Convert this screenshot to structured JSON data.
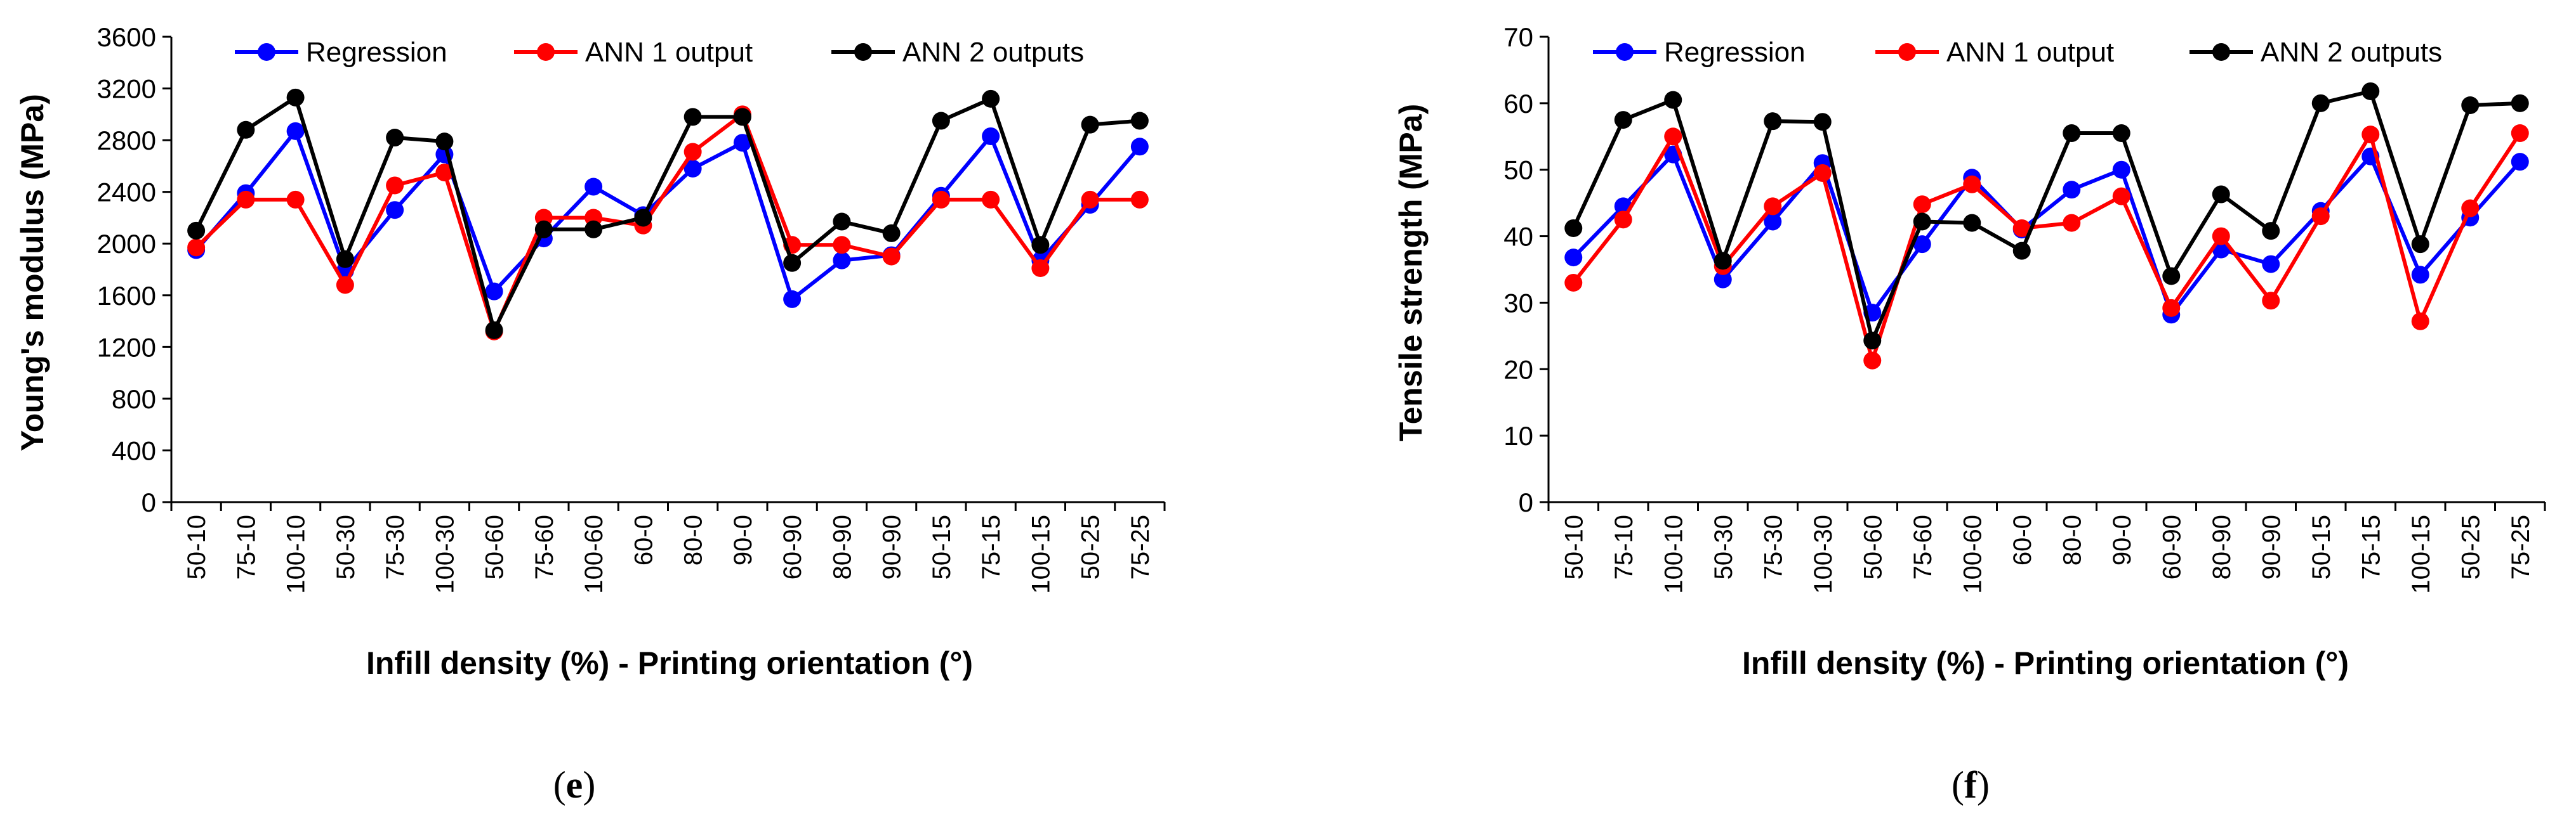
{
  "chart_data": [
    {
      "type": "line",
      "panel_label_prefix": "(",
      "panel_label_letter": "e",
      "panel_label_suffix": ")",
      "ylabel": "Young's modulus (MPa)",
      "xlabel": "Infill density (%) - Printing orientation (°)",
      "ylim": [
        0,
        3600
      ],
      "yticks": [
        0,
        400,
        800,
        1200,
        1600,
        2000,
        2400,
        2800,
        3200,
        3600
      ],
      "legend_position": "top",
      "categories": [
        "50-10",
        "75-10",
        "100-10",
        "50-30",
        "75-30",
        "100-30",
        "50-60",
        "75-60",
        "100-60",
        "60-0",
        "80-0",
        "90-0",
        "60-90",
        "80-90",
        "90-90",
        "50-15",
        "75-15",
        "100-15",
        "50-25",
        "75-25"
      ],
      "series": [
        {
          "name": "Regression",
          "color": "#0000ff",
          "values": [
            1950,
            2390,
            2870,
            1790,
            2260,
            2690,
            1630,
            2040,
            2440,
            2220,
            2580,
            2780,
            1570,
            1870,
            1910,
            2370,
            2830,
            1870,
            2300,
            2750
          ]
        },
        {
          "name": "ANN 1 output",
          "color": "#ff0000",
          "values": [
            1970,
            2340,
            2340,
            1680,
            2450,
            2550,
            1320,
            2200,
            2200,
            2140,
            2710,
            3000,
            1990,
            1990,
            1900,
            2340,
            2340,
            1810,
            2340,
            2340
          ]
        },
        {
          "name": "ANN 2 outputs",
          "color": "#000000",
          "values": [
            2100,
            2880,
            3130,
            1880,
            2820,
            2790,
            1330,
            2110,
            2110,
            2200,
            2980,
            2980,
            1850,
            2170,
            2080,
            2950,
            3120,
            1990,
            2920,
            2950
          ]
        }
      ]
    },
    {
      "type": "line",
      "panel_label_prefix": "(",
      "panel_label_letter": "f",
      "panel_label_suffix": ")",
      "ylabel": "Tensile strength (MPa)",
      "xlabel": "Infill density (%) - Printing orientation (°)",
      "ylim": [
        0,
        70
      ],
      "yticks": [
        0,
        10,
        20,
        30,
        40,
        50,
        60,
        70
      ],
      "legend_position": "top",
      "categories": [
        "50-10",
        "75-10",
        "100-10",
        "50-30",
        "75-30",
        "100-30",
        "50-60",
        "75-60",
        "100-60",
        "60-0",
        "80-0",
        "90-0",
        "60-90",
        "80-90",
        "90-90",
        "50-15",
        "75-15",
        "100-15",
        "50-25",
        "75-25"
      ],
      "series": [
        {
          "name": "Regression",
          "color": "#0000ff",
          "values": [
            36.8,
            44.5,
            52.3,
            33.5,
            42.2,
            51.0,
            28.5,
            38.8,
            48.8,
            41.0,
            47.0,
            50.0,
            28.2,
            38.0,
            35.8,
            43.8,
            52.0,
            34.2,
            42.8,
            51.2
          ]
        },
        {
          "name": "ANN 1 output",
          "color": "#ff0000",
          "values": [
            33.0,
            42.5,
            55.0,
            35.5,
            44.5,
            49.5,
            21.3,
            44.8,
            47.8,
            41.2,
            42.0,
            46.0,
            29.2,
            40.0,
            30.3,
            43.0,
            55.3,
            27.2,
            44.2,
            55.5
          ]
        },
        {
          "name": "ANN 2 outputs",
          "color": "#000000",
          "values": [
            41.2,
            57.5,
            60.5,
            36.3,
            57.3,
            57.2,
            24.3,
            42.2,
            42.0,
            37.8,
            55.5,
            55.5,
            34.0,
            46.3,
            40.8,
            60.0,
            61.8,
            38.8,
            59.7,
            60.0
          ]
        }
      ]
    }
  ]
}
